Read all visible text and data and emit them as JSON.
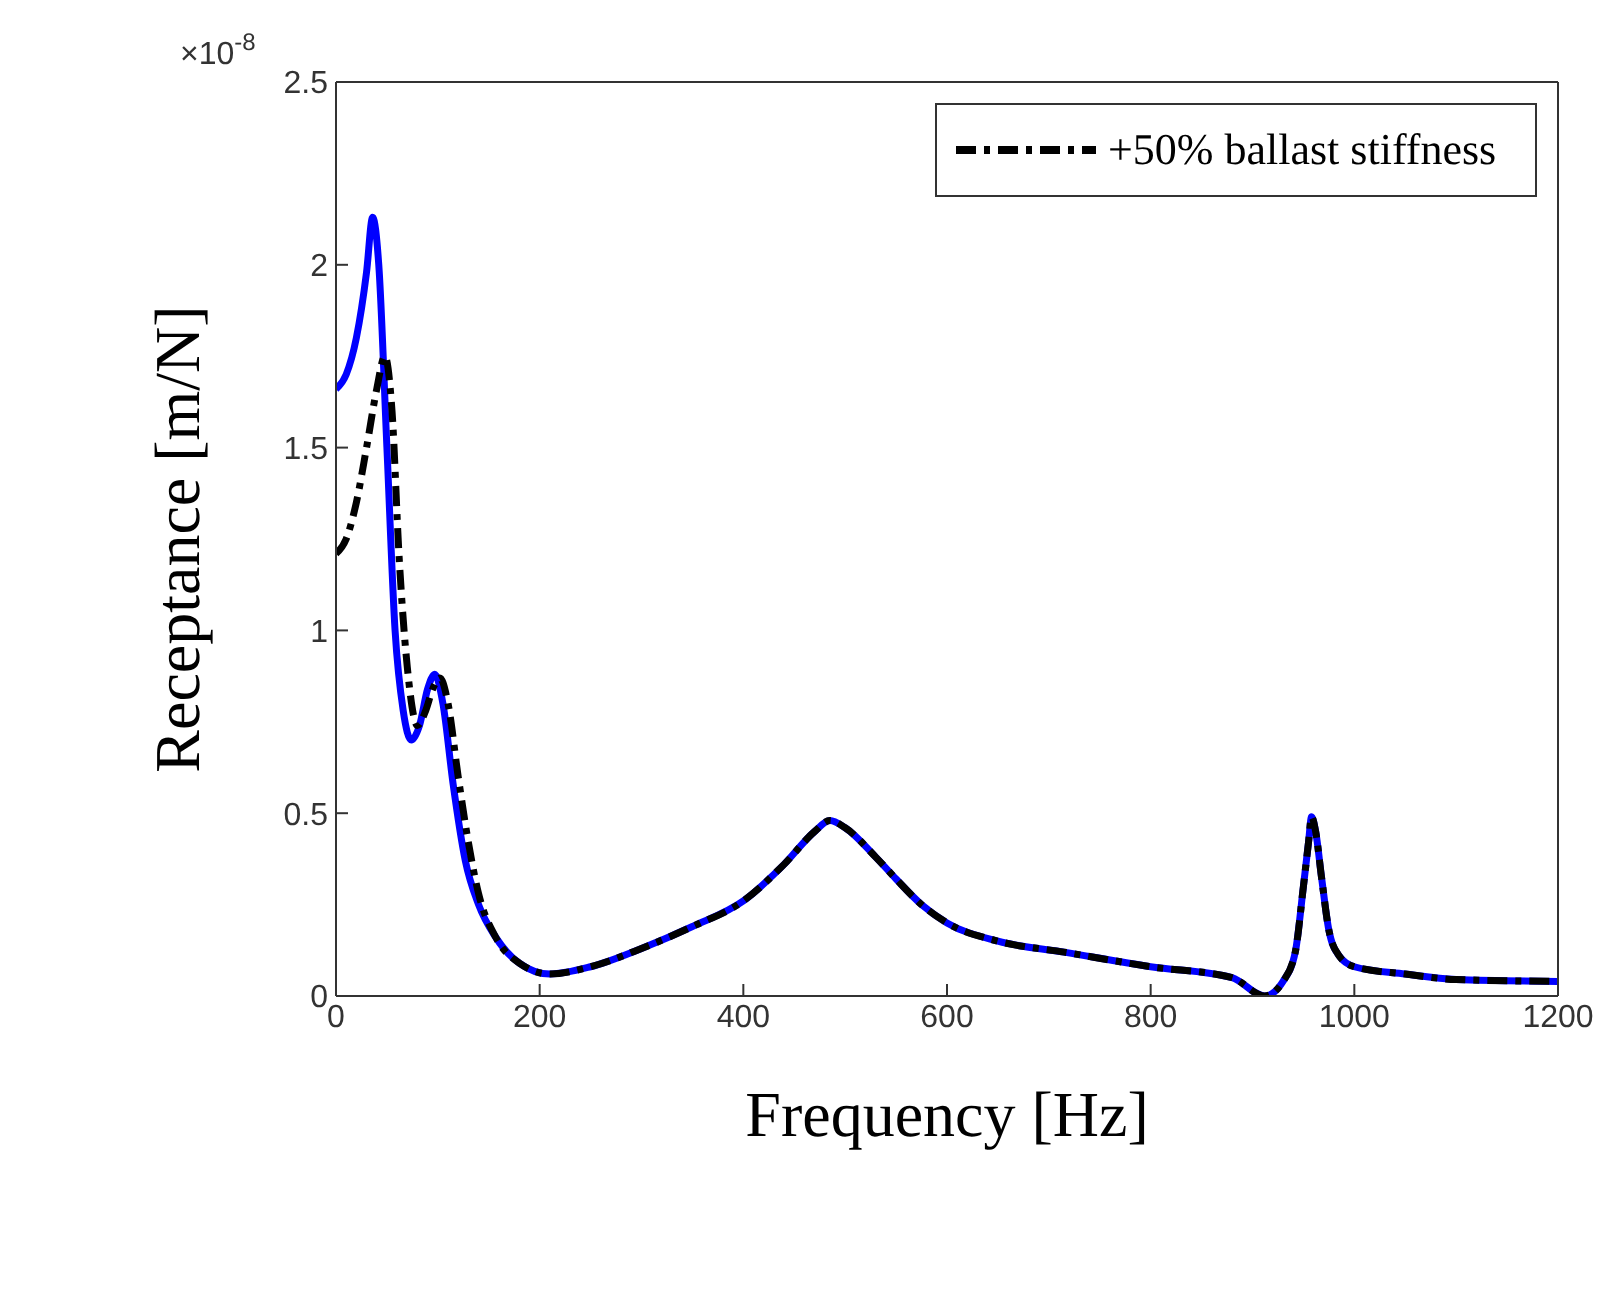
{
  "chart_data": {
    "type": "line",
    "xlabel": "Frequency [Hz]",
    "ylabel": "Receptance [m/N]",
    "annotations": [
      "×10$^{-8}$"
    ],
    "xlim": [
      0,
      1200
    ],
    "xticks": [
      0,
      200,
      400,
      600,
      800,
      1000,
      1200
    ],
    "ylim": [
      0,
      2.5
    ],
    "yticks": [
      0,
      0.5,
      1,
      1.5,
      2,
      2.5
    ],
    "grid": false,
    "legend": "top right",
    "series": [
      {
        "color": "#0000ff",
        "line_style": "solid",
        "x": [
          0,
          10,
          20,
          30,
          36,
          42,
          50,
          58,
          66,
          74,
          82,
          90,
          97,
          105,
          115,
          127,
          140,
          157,
          180,
          210,
          250,
          300,
          350,
          400,
          440,
          470,
          485,
          500,
          530,
          550,
          575,
          600,
          650,
          715,
          800,
          880,
          912,
          930,
          942,
          950,
          955,
          958,
          962,
          968,
          975,
          985,
          1000,
          1050,
          1100,
          1200
        ],
        "values": [
          1.66,
          1.7,
          1.8,
          1.98,
          2.13,
          2.0,
          1.5,
          1.0,
          0.78,
          0.7,
          0.74,
          0.84,
          0.88,
          0.8,
          0.58,
          0.37,
          0.25,
          0.16,
          0.09,
          0.06,
          0.08,
          0.13,
          0.19,
          0.26,
          0.36,
          0.45,
          0.48,
          0.46,
          0.38,
          0.32,
          0.25,
          0.2,
          0.15,
          0.12,
          0.08,
          0.05,
          0.0,
          0.04,
          0.12,
          0.3,
          0.42,
          0.49,
          0.45,
          0.32,
          0.18,
          0.11,
          0.08,
          0.06,
          0.045,
          0.04
        ]
      },
      {
        "name": "+50% ballast stiffness",
        "color": "#000000",
        "line_style": "dashed",
        "x": [
          0,
          10,
          20,
          30,
          40,
          48,
          55,
          62,
          70,
          80,
          88,
          95,
          102,
          110,
          120,
          130,
          140,
          157,
          180,
          210,
          250,
          300,
          350,
          400,
          440,
          470,
          485,
          500,
          530,
          550,
          575,
          600,
          650,
          715,
          800,
          880,
          912,
          930,
          942,
          950,
          955,
          958,
          962,
          968,
          975,
          985,
          1000,
          1050,
          1100,
          1200
        ],
        "values": [
          1.21,
          1.25,
          1.35,
          1.5,
          1.66,
          1.75,
          1.6,
          1.2,
          0.9,
          0.74,
          0.78,
          0.84,
          0.87,
          0.8,
          0.6,
          0.42,
          0.28,
          0.16,
          0.09,
          0.06,
          0.08,
          0.13,
          0.19,
          0.26,
          0.36,
          0.45,
          0.48,
          0.46,
          0.38,
          0.32,
          0.25,
          0.2,
          0.15,
          0.12,
          0.08,
          0.05,
          0.0,
          0.04,
          0.12,
          0.3,
          0.42,
          0.49,
          0.45,
          0.32,
          0.18,
          0.11,
          0.08,
          0.06,
          0.045,
          0.04
        ]
      }
    ]
  }
}
